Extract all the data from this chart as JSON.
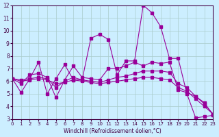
{
  "xlabel": "Windchill (Refroidissement éolien,°C)",
  "ylabel": "",
  "background_color": "#cceeff",
  "line_color": "#990099",
  "grid_color": "#aacccc",
  "xlim": [
    0,
    23
  ],
  "ylim": [
    3,
    12
  ],
  "yticks": [
    3,
    4,
    5,
    6,
    7,
    8,
    9,
    10,
    11,
    12
  ],
  "xticks": [
    0,
    1,
    2,
    3,
    4,
    5,
    6,
    7,
    8,
    9,
    10,
    11,
    12,
    13,
    14,
    15,
    16,
    17,
    18,
    19,
    20,
    21,
    22,
    23
  ],
  "series": [
    [
      6.2,
      5.1,
      6.2,
      7.5,
      5.0,
      6.2,
      7.3,
      6.1,
      6.1,
      9.4,
      9.7,
      9.3,
      6.5,
      7.6,
      7.6,
      12.0,
      11.4,
      10.3,
      7.8,
      7.8,
      5.0,
      3.1,
      3.2,
      3.3
    ],
    [
      6.2,
      5.8,
      6.5,
      6.6,
      6.3,
      4.7,
      6.1,
      7.2,
      6.3,
      6.2,
      6.1,
      7.0,
      7.0,
      7.2,
      7.5,
      7.2,
      7.5,
      7.4,
      7.5,
      5.3,
      5.1,
      4.8,
      4.3,
      3.3
    ],
    [
      6.2,
      6.1,
      6.2,
      6.3,
      6.2,
      5.5,
      6.0,
      6.3,
      6.1,
      6.0,
      5.9,
      6.1,
      6.3,
      6.4,
      6.6,
      6.8,
      6.8,
      6.8,
      6.7,
      5.8,
      5.5,
      4.8,
      4.2,
      3.4
    ],
    [
      6.2,
      6.0,
      6.1,
      6.2,
      6.1,
      5.8,
      5.9,
      6.1,
      6.0,
      5.9,
      5.8,
      5.9,
      6.0,
      6.1,
      6.2,
      6.3,
      6.3,
      6.2,
      6.1,
      5.5,
      5.2,
      4.6,
      4.0,
      3.4
    ]
  ]
}
